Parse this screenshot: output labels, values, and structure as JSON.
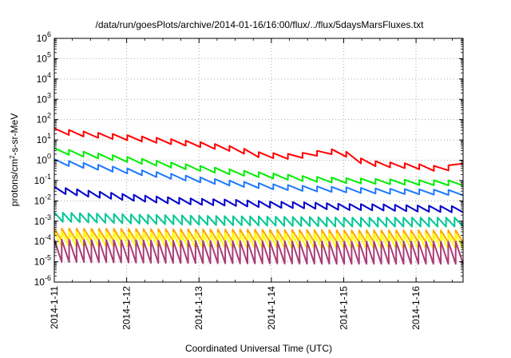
{
  "chart_data": {
    "type": "line",
    "title": "/data/run/goesPlots/archive/2014-01-16/16:00/flux/../flux/5daysMarsFluxes.txt",
    "xlabel": "Coordinated Universal Time (UTC)",
    "ylabel": {
      "prefix": "protons/cm",
      "sup": "2",
      "suffix": "-s-sr-MeV"
    },
    "yscale": "log",
    "ylim_exp": [
      -6,
      6
    ],
    "y_tick_labels": [
      {
        "base": "10",
        "exp": "-6"
      },
      {
        "base": "10",
        "exp": "-5"
      },
      {
        "base": "10",
        "exp": "-4"
      },
      {
        "base": "10",
        "exp": "-3"
      },
      {
        "base": "10",
        "exp": "-2"
      },
      {
        "base": "10",
        "exp": "-1"
      },
      {
        "base": "10",
        "exp": "0"
      },
      {
        "base": "10",
        "exp": "1"
      },
      {
        "base": "10",
        "exp": "2"
      },
      {
        "base": "10",
        "exp": "3"
      },
      {
        "base": "10",
        "exp": "4"
      },
      {
        "base": "10",
        "exp": "5"
      },
      {
        "base": "10",
        "exp": "6"
      }
    ],
    "x_tick_labels": [
      "2014-1-11",
      "2014-1-12",
      "2014-1-13",
      "2014-1-14",
      "2014-1-15",
      "2014-1-16"
    ],
    "xlim_days": [
      0,
      5.65
    ],
    "grid": true,
    "series": [
      {
        "color": "#ff0000",
        "teeth": 28,
        "amp_decades": 0.25,
        "anchors": [
          [
            0.0,
            28
          ],
          [
            0.5,
            18
          ],
          [
            1.0,
            13
          ],
          [
            1.5,
            9
          ],
          [
            2.0,
            6
          ],
          [
            2.5,
            3.5
          ],
          [
            2.85,
            1.8
          ],
          [
            3.3,
            1.5
          ],
          [
            3.75,
            2.5
          ],
          [
            3.95,
            2.8
          ],
          [
            4.1,
            1.5
          ],
          [
            4.3,
            0.75
          ],
          [
            4.6,
            0.6
          ],
          [
            5.0,
            0.5
          ],
          [
            5.4,
            0.35
          ],
          [
            5.65,
            0.9
          ]
        ]
      },
      {
        "color": "#00ee00",
        "teeth": 28,
        "amp_decades": 0.25,
        "anchors": [
          [
            0.0,
            3.0
          ],
          [
            0.5,
            1.8
          ],
          [
            1.0,
            1.1
          ],
          [
            1.5,
            0.65
          ],
          [
            2.0,
            0.4
          ],
          [
            2.5,
            0.25
          ],
          [
            3.0,
            0.17
          ],
          [
            3.5,
            0.12
          ],
          [
            4.0,
            0.1
          ],
          [
            4.5,
            0.09
          ],
          [
            5.0,
            0.08
          ],
          [
            5.65,
            0.075
          ]
        ]
      },
      {
        "color": "#1e78ff",
        "teeth": 28,
        "amp_decades": 0.25,
        "anchors": [
          [
            0.0,
            0.85
          ],
          [
            0.5,
            0.5
          ],
          [
            1.0,
            0.3
          ],
          [
            1.5,
            0.18
          ],
          [
            2.0,
            0.11
          ],
          [
            2.5,
            0.07
          ],
          [
            3.0,
            0.05
          ],
          [
            3.5,
            0.04
          ],
          [
            4.0,
            0.035
          ],
          [
            4.5,
            0.03
          ],
          [
            5.0,
            0.028
          ],
          [
            5.65,
            0.025
          ]
        ]
      },
      {
        "color": "#0000cc",
        "teeth": 36,
        "amp_decades": 0.3,
        "anchors": [
          [
            0.0,
            0.035
          ],
          [
            0.5,
            0.022
          ],
          [
            1.0,
            0.015
          ],
          [
            1.5,
            0.011
          ],
          [
            2.0,
            0.009
          ],
          [
            2.5,
            0.008
          ],
          [
            3.0,
            0.0065
          ],
          [
            3.5,
            0.006
          ],
          [
            4.0,
            0.005
          ],
          [
            4.5,
            0.0048
          ],
          [
            5.0,
            0.0042
          ],
          [
            5.65,
            0.0038
          ]
        ]
      },
      {
        "color": "#00c896",
        "teeth": 48,
        "amp_decades": 0.45,
        "anchors": [
          [
            0.0,
            0.0016
          ],
          [
            1.0,
            0.0013
          ],
          [
            2.0,
            0.0011
          ],
          [
            3.0,
            0.001
          ],
          [
            4.0,
            0.0009
          ],
          [
            5.0,
            0.0009
          ],
          [
            5.65,
            0.0009
          ]
        ]
      },
      {
        "color": "#ffa500",
        "teeth": 55,
        "amp_decades": 0.6,
        "anchors": [
          [
            0.0,
            0.00022
          ],
          [
            2.0,
            0.0002
          ],
          [
            4.0,
            0.00018
          ],
          [
            5.65,
            0.00018
          ]
        ]
      },
      {
        "color": "#ffff00",
        "teeth": 55,
        "amp_decades": 0.75,
        "anchors": [
          [
            0.0,
            0.00013
          ],
          [
            2.0,
            0.00011
          ],
          [
            4.0,
            0.0001
          ],
          [
            5.65,
            0.0001
          ]
        ]
      },
      {
        "color": "#aa3c78",
        "teeth": 55,
        "amp_decades": 1.1,
        "anchors": [
          [
            0.0,
            3.5e-05
          ],
          [
            2.0,
            3e-05
          ],
          [
            4.0,
            2.8e-05
          ],
          [
            5.65,
            2.8e-05
          ]
        ]
      }
    ]
  }
}
